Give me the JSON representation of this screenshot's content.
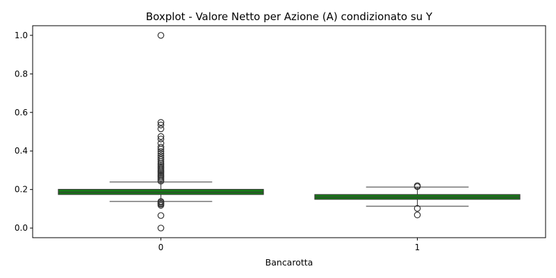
{
  "chart_data": {
    "type": "boxplot",
    "title": "Boxplot - Valore Netto per Azione (A) condizionato su Y",
    "xlabel": "Bancarotta",
    "ylabel": "",
    "categories": [
      "0",
      "1"
    ],
    "ylim": [
      -0.05,
      1.05
    ],
    "yticks": [
      0.0,
      0.2,
      0.4,
      0.6,
      0.8,
      1.0
    ],
    "ytick_labels": [
      "0.0",
      "0.2",
      "0.4",
      "0.6",
      "0.8",
      "1.0"
    ],
    "grid": false,
    "box_color": "#1a7a1a",
    "boxes": [
      {
        "category": "0",
        "whisker_low": 0.138,
        "q1": 0.174,
        "median": 0.186,
        "q3": 0.201,
        "whisker_high": 0.239,
        "outliers": [
          0.0,
          0.065,
          0.118,
          0.124,
          0.128,
          0.134,
          0.138,
          0.243,
          0.25,
          0.258,
          0.265,
          0.272,
          0.278,
          0.285,
          0.292,
          0.298,
          0.305,
          0.312,
          0.32,
          0.328,
          0.336,
          0.345,
          0.355,
          0.365,
          0.375,
          0.387,
          0.398,
          0.41,
          0.42,
          0.44,
          0.462,
          0.475,
          0.515,
          0.535,
          0.548,
          1.0
        ]
      },
      {
        "category": "1",
        "whisker_low": 0.113,
        "q1": 0.149,
        "median": 0.16,
        "q3": 0.174,
        "whisker_high": 0.213,
        "outliers": [
          0.068,
          0.102,
          0.215,
          0.22
        ]
      }
    ]
  }
}
